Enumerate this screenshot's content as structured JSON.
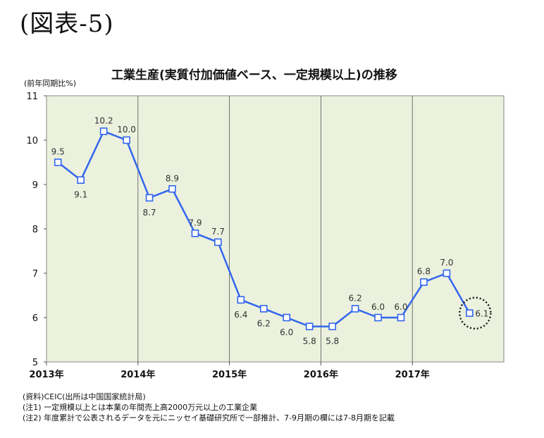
{
  "heading": "(図表-5)",
  "chart_data": {
    "type": "line",
    "title": "工業生産(実質付加価値ベース、一定規模以上)の推移",
    "ylabel": "(前年同期比%)",
    "xlabel": "",
    "ylim": [
      5,
      11
    ],
    "yticks": [
      5,
      6,
      7,
      8,
      9,
      10,
      11
    ],
    "xticks": [
      "2013年",
      "2014年",
      "2015年",
      "2016年",
      "2017年"
    ],
    "grid": "vertical year dividers",
    "background_color": "#ebf1dd",
    "line_color": "#3366ee",
    "series": [
      {
        "x": [
          "2013Q1",
          "2013Q2",
          "2013Q3",
          "2013Q4",
          "2014Q1",
          "2014Q2",
          "2014Q3",
          "2014Q4",
          "2015Q1",
          "2015Q2",
          "2015Q3",
          "2015Q4",
          "2016Q1",
          "2016Q2",
          "2016Q3",
          "2016Q4",
          "2017Q1",
          "2017Q2",
          "2017Q3"
        ],
        "values": [
          9.5,
          9.1,
          10.2,
          10.0,
          8.7,
          8.9,
          7.9,
          7.7,
          6.4,
          6.2,
          6.0,
          5.8,
          5.8,
          6.2,
          6.0,
          6.0,
          6.8,
          7.0,
          6.1
        ],
        "labels": [
          "9.5",
          "9.1",
          "10.2",
          "10.0",
          "8.7",
          "8.9",
          "7.9",
          "7.7",
          "6.4",
          "6.2",
          "6.0",
          "5.8",
          "5.8",
          "6.2",
          "6.0",
          "6.0",
          "6.8",
          "7.0",
          "6.1"
        ]
      }
    ],
    "highlight": "last point circled with dotted ring"
  },
  "notes": [
    "(資料)CEIC(出所は中国国家統計局)",
    "(注1) 一定規模以上とは本業の年間売上高2000万元以上の工業企業",
    "(注2) 年度累計で公表されるデータを元にニッセイ基礎研究所で一部推計、7-9月期の欄には7-8月期を記載"
  ]
}
